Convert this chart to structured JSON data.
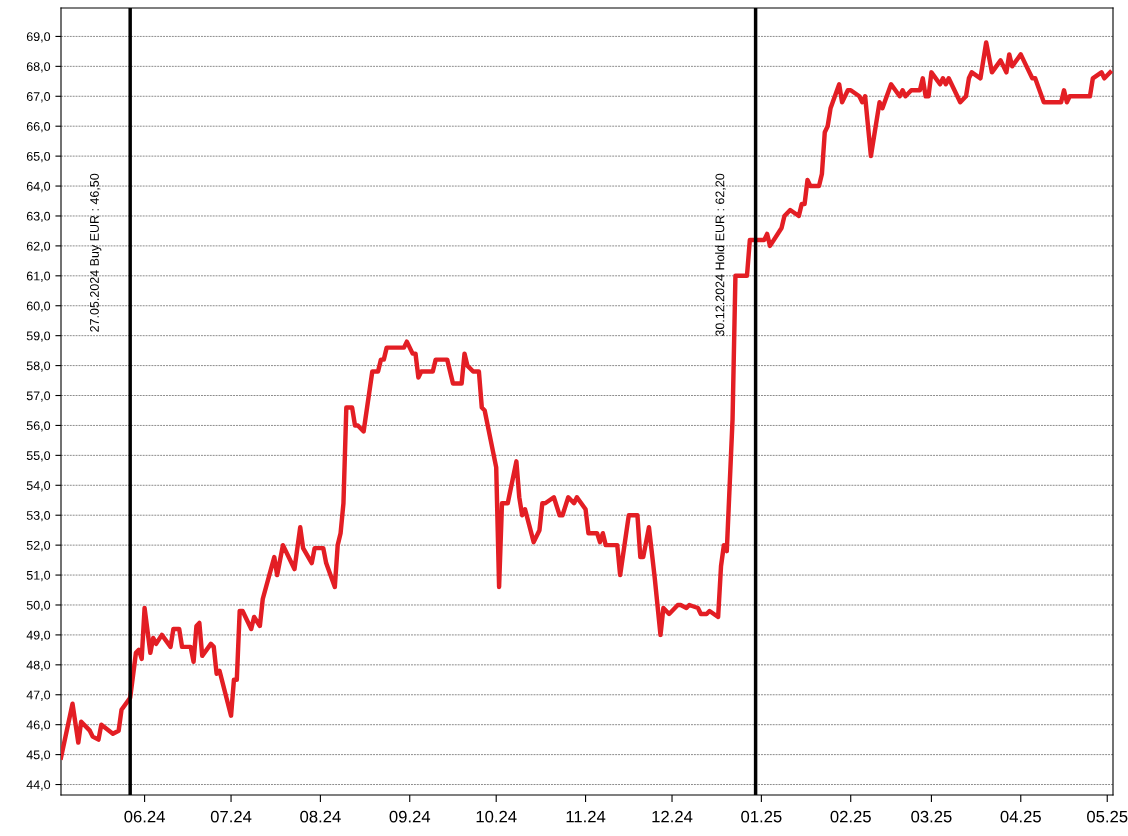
{
  "chart_data": {
    "type": "line",
    "x": [
      "2024-05-03",
      "2024-05-07",
      "2024-05-09",
      "2024-05-10",
      "2024-05-13",
      "2024-05-14",
      "2024-05-16",
      "2024-05-17",
      "2024-05-21",
      "2024-05-23",
      "2024-05-24",
      "2024-05-27",
      "2024-05-29",
      "2024-05-30",
      "2024-05-31",
      "2024-06-01",
      "2024-06-03",
      "2024-06-04",
      "2024-06-05",
      "2024-06-07",
      "2024-06-10",
      "2024-06-11",
      "2024-06-13",
      "2024-06-14",
      "2024-06-17",
      "2024-06-18",
      "2024-06-19",
      "2024-06-20",
      "2024-06-21",
      "2024-06-24",
      "2024-06-25",
      "2024-06-26",
      "2024-06-27",
      "2024-07-01",
      "2024-07-02",
      "2024-07-03",
      "2024-07-04",
      "2024-07-05",
      "2024-07-08",
      "2024-07-09",
      "2024-07-11",
      "2024-07-12",
      "2024-07-16",
      "2024-07-17",
      "2024-07-19",
      "2024-07-23",
      "2024-07-25",
      "2024-07-26",
      "2024-07-29",
      "2024-07-30",
      "2024-08-02",
      "2024-08-03",
      "2024-08-06",
      "2024-08-07",
      "2024-08-08",
      "2024-08-09",
      "2024-08-10",
      "2024-08-12",
      "2024-08-13",
      "2024-08-14",
      "2024-08-16",
      "2024-08-19",
      "2024-08-21",
      "2024-08-22",
      "2024-08-23",
      "2024-08-24",
      "2024-08-30",
      "2024-08-31",
      "2024-09-02",
      "2024-09-03",
      "2024-09-04",
      "2024-09-05",
      "2024-09-09",
      "2024-09-10",
      "2024-09-14",
      "2024-09-16",
      "2024-09-19",
      "2024-09-20",
      "2024-09-21",
      "2024-09-23",
      "2024-09-25",
      "2024-09-26",
      "2024-09-27",
      "2024-10-01",
      "2024-10-02",
      "2024-10-03",
      "2024-10-05",
      "2024-10-08",
      "2024-10-09",
      "2024-10-10",
      "2024-10-11",
      "2024-10-14",
      "2024-10-16",
      "2024-10-17",
      "2024-10-18",
      "2024-10-21",
      "2024-10-23",
      "2024-10-24",
      "2024-10-26",
      "2024-10-28",
      "2024-10-29",
      "2024-11-01",
      "2024-11-02",
      "2024-11-05",
      "2024-11-06",
      "2024-11-07",
      "2024-11-08",
      "2024-11-12",
      "2024-11-13",
      "2024-11-16",
      "2024-11-19",
      "2024-11-20",
      "2024-11-21",
      "2024-11-23",
      "2024-11-25",
      "2024-11-27",
      "2024-11-28",
      "2024-11-30",
      "2024-12-03",
      "2024-12-04",
      "2024-12-06",
      "2024-12-07",
      "2024-12-10",
      "2024-12-11",
      "2024-12-13",
      "2024-12-14",
      "2024-12-17",
      "2024-12-18",
      "2024-12-19",
      "2024-12-20",
      "2024-12-22",
      "2024-12-23",
      "2024-12-27",
      "2024-12-28",
      "2025-01-02",
      "2025-01-03",
      "2025-01-04",
      "2025-01-08",
      "2025-01-09",
      "2025-01-11",
      "2025-01-14",
      "2025-01-15",
      "2025-01-16",
      "2025-01-17",
      "2025-01-18",
      "2025-01-21",
      "2025-01-22",
      "2025-01-23",
      "2025-01-24",
      "2025-01-25",
      "2025-01-28",
      "2025-01-29",
      "2025-01-31",
      "2025-02-01",
      "2025-02-04",
      "2025-02-05",
      "2025-02-06",
      "2025-02-08",
      "2025-02-11",
      "2025-02-12",
      "2025-02-15",
      "2025-02-18",
      "2025-02-19",
      "2025-02-20",
      "2025-02-22",
      "2025-02-25",
      "2025-02-26",
      "2025-02-27",
      "2025-02-28",
      "2025-03-01",
      "2025-03-04",
      "2025-03-05",
      "2025-03-06",
      "2025-03-07",
      "2025-03-11",
      "2025-03-13",
      "2025-03-14",
      "2025-03-15",
      "2025-03-18",
      "2025-03-20",
      "2025-03-22",
      "2025-03-25",
      "2025-03-27",
      "2025-03-28",
      "2025-03-29",
      "2025-04-01",
      "2025-04-03",
      "2025-04-05",
      "2025-04-06",
      "2025-04-09",
      "2025-04-15",
      "2025-04-16",
      "2025-04-17",
      "2025-04-18",
      "2025-04-25",
      "2025-04-26",
      "2025-04-29",
      "2025-04-30",
      "2025-05-02"
    ],
    "series": [
      {
        "color": "#e31e24",
        "values": [
          44.9,
          46.7,
          45.4,
          46.1,
          45.8,
          45.6,
          45.5,
          46.0,
          45.7,
          45.8,
          46.5,
          46.9,
          48.4,
          48.5,
          48.2,
          49.9,
          48.4,
          48.9,
          48.7,
          49.0,
          48.6,
          49.2,
          49.2,
          48.6,
          48.6,
          48.1,
          49.3,
          49.4,
          48.3,
          48.7,
          48.6,
          47.7,
          47.8,
          46.3,
          47.5,
          47.5,
          49.8,
          49.8,
          49.2,
          49.6,
          49.3,
          50.2,
          51.6,
          51.0,
          52.0,
          51.2,
          52.6,
          51.9,
          51.4,
          51.9,
          51.9,
          51.4,
          50.6,
          52.0,
          52.4,
          53.4,
          56.6,
          56.6,
          56.0,
          56.0,
          55.8,
          57.8,
          57.8,
          58.2,
          58.2,
          58.6,
          58.6,
          58.8,
          58.4,
          58.4,
          57.6,
          57.8,
          57.8,
          58.2,
          58.2,
          57.4,
          57.4,
          58.4,
          58.0,
          57.8,
          57.8,
          56.6,
          56.5,
          54.6,
          50.6,
          53.4,
          53.4,
          54.8,
          53.6,
          53.0,
          53.2,
          52.1,
          52.5,
          53.4,
          53.4,
          53.6,
          53.0,
          53.0,
          53.6,
          53.4,
          53.6,
          53.2,
          52.4,
          52.4,
          52.1,
          52.4,
          52.0,
          52.0,
          51.0,
          53.0,
          53.0,
          51.6,
          51.6,
          52.6,
          50.9,
          49.0,
          49.9,
          49.7,
          50.0,
          50.0,
          49.9,
          50.0,
          49.9,
          49.7,
          49.7,
          49.8,
          49.6,
          51.3,
          52.0,
          51.8,
          56.2,
          61.0,
          61.0,
          62.2,
          62.2,
          62.4,
          62.0,
          62.6,
          63.0,
          63.2,
          63.0,
          63.4,
          63.4,
          64.2,
          64.0,
          64.0,
          64.4,
          65.8,
          66.0,
          66.6,
          67.4,
          66.8,
          67.2,
          67.2,
          67.0,
          66.8,
          67.0,
          65.0,
          66.8,
          66.6,
          67.4,
          67.0,
          67.2,
          67.0,
          67.2,
          67.2,
          67.6,
          67.0,
          67.0,
          67.8,
          67.4,
          67.6,
          67.4,
          67.6,
          66.8,
          67.0,
          67.6,
          67.8,
          67.6,
          68.8,
          67.8,
          68.2,
          67.8,
          68.4,
          68.0,
          68.4,
          68.0,
          67.6,
          67.6,
          66.8,
          66.8,
          67.2,
          66.8,
          67.0,
          67.0,
          67.6,
          67.8,
          67.6,
          67.8
        ]
      }
    ],
    "xlim": [
      "2024-05-03",
      "2025-05-03"
    ],
    "xticks": [
      {
        "value": "2024-06-01",
        "label": "06.24"
      },
      {
        "value": "2024-07-01",
        "label": "07.24"
      },
      {
        "value": "2024-08-01",
        "label": "08.24"
      },
      {
        "value": "2024-09-01",
        "label": "09.24"
      },
      {
        "value": "2024-10-01",
        "label": "10.24"
      },
      {
        "value": "2024-11-01",
        "label": "11.24"
      },
      {
        "value": "2024-12-01",
        "label": "12.24"
      },
      {
        "value": "2025-01-01",
        "label": "01.25"
      },
      {
        "value": "2025-02-01",
        "label": "02.25"
      },
      {
        "value": "2025-03-01",
        "label": "03.25"
      },
      {
        "value": "2025-04-01",
        "label": "04.25"
      },
      {
        "value": "2025-05-01",
        "label": "05.25"
      }
    ],
    "ylim": [
      43.65,
      69.95
    ],
    "yticks": [
      {
        "value": 44,
        "label": "44,0"
      },
      {
        "value": 45,
        "label": "45,0"
      },
      {
        "value": 46,
        "label": "46,0"
      },
      {
        "value": 47,
        "label": "47,0"
      },
      {
        "value": 48,
        "label": "48,0"
      },
      {
        "value": 49,
        "label": "49,0"
      },
      {
        "value": 50,
        "label": "50,0"
      },
      {
        "value": 51,
        "label": "51,0"
      },
      {
        "value": 52,
        "label": "52,0"
      },
      {
        "value": 53,
        "label": "53,0"
      },
      {
        "value": 54,
        "label": "54,0"
      },
      {
        "value": 55,
        "label": "55,0"
      },
      {
        "value": 56,
        "label": "56,0"
      },
      {
        "value": 57,
        "label": "57,0"
      },
      {
        "value": 58,
        "label": "58,0"
      },
      {
        "value": 59,
        "label": "59,0"
      },
      {
        "value": 60,
        "label": "60,0"
      },
      {
        "value": 61,
        "label": "61,0"
      },
      {
        "value": 62,
        "label": "62,0"
      },
      {
        "value": 63,
        "label": "63,0"
      },
      {
        "value": 64,
        "label": "64,0"
      },
      {
        "value": 65,
        "label": "65,0"
      },
      {
        "value": 66,
        "label": "66,0"
      },
      {
        "value": 67,
        "label": "67,0"
      },
      {
        "value": 68,
        "label": "68,0"
      },
      {
        "value": 69,
        "label": "69,0"
      }
    ],
    "ref_lines": [
      {
        "axis": "x",
        "value": "2024-05-27",
        "label": "27.05.2024 Buy EUR : 46,50",
        "color": "#000000"
      },
      {
        "axis": "x",
        "value": "2024-12-30",
        "label": "30.12.2024 Hold EUR : 62,20",
        "color": "#000000"
      }
    ],
    "grid": "y",
    "legend": false,
    "marker": "none",
    "line_style": "solid"
  }
}
